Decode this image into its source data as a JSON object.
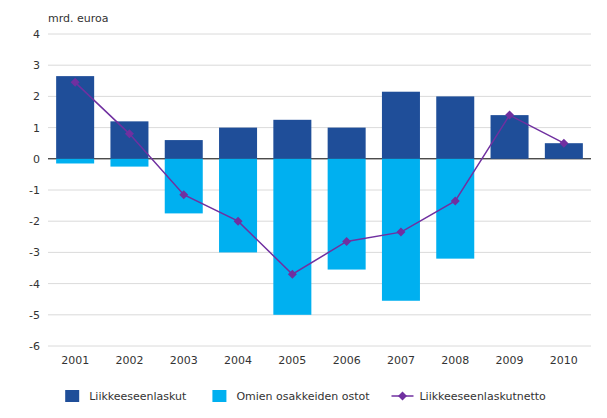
{
  "chart_data": {
    "type": "bar",
    "ylabel": "mrd. euroa",
    "categories": [
      "2001",
      "2002",
      "2003",
      "2004",
      "2005",
      "2006",
      "2007",
      "2008",
      "2009",
      "2010"
    ],
    "series": [
      {
        "name": "Liikkeeseenlaskut",
        "type": "bar",
        "color": "#1f4e99",
        "values": [
          2.65,
          1.2,
          0.6,
          1.0,
          1.25,
          1.0,
          2.15,
          2.0,
          1.4,
          0.5
        ]
      },
      {
        "name": "Omien osakkeiden ostot",
        "type": "bar",
        "color": "#00b0f0",
        "values": [
          -0.15,
          -0.25,
          -1.75,
          -3.0,
          -5.0,
          -3.55,
          -4.55,
          -3.2,
          0.0,
          0.0
        ]
      },
      {
        "name": "Liikkeeseenlaskutnetto",
        "type": "line",
        "color": "#7030a0",
        "marker": "diamond",
        "values": [
          2.45,
          0.8,
          -1.15,
          -2.0,
          -3.7,
          -2.65,
          -2.35,
          -1.35,
          1.4,
          0.5
        ]
      }
    ],
    "ylim": [
      -6,
      4
    ],
    "yticks": [
      -6,
      -5,
      -4,
      -3,
      -2,
      -1,
      0,
      1,
      2,
      3,
      4
    ],
    "grid": true,
    "legend": "bottom"
  }
}
